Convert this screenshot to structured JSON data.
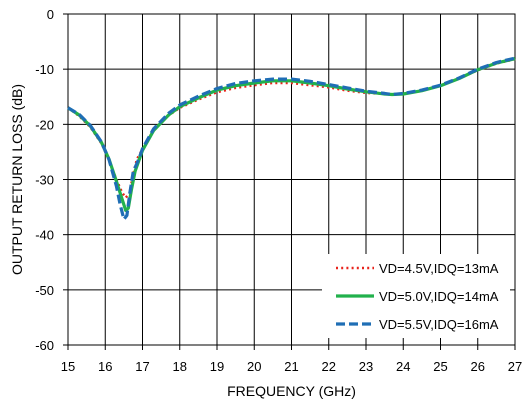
{
  "chart_data": {
    "type": "line",
    "title": "",
    "xlabel": "FREQUENCY (GHz)",
    "ylabel": "OUTPUT RETURN LOSS (dB)",
    "xlim": [
      15,
      27
    ],
    "ylim": [
      -60,
      0
    ],
    "xticks": [
      15,
      16,
      17,
      18,
      19,
      20,
      21,
      22,
      23,
      24,
      25,
      26,
      27
    ],
    "yticks": [
      0,
      -10,
      -20,
      -30,
      -40,
      -50,
      -60
    ],
    "grid": true,
    "legend_position": "bottom-right",
    "series": [
      {
        "name": "VD=4.5V,IDQ=13mA",
        "color": "#e8231b",
        "style": "dotted",
        "x": [
          15,
          15.3,
          15.6,
          15.9,
          16.1,
          16.3,
          16.45,
          16.55,
          16.65,
          16.75,
          16.85,
          17,
          17.3,
          17.7,
          18,
          18.5,
          19,
          19.5,
          20,
          20.5,
          21,
          21.5,
          22,
          22.5,
          23,
          23.5,
          23.7,
          24,
          24.5,
          25,
          25.5,
          26,
          26.5,
          27
        ],
        "y": [
          -17,
          -18.5,
          -20.5,
          -23.5,
          -26.5,
          -30,
          -32.3,
          -33.3,
          -32.5,
          -29,
          -26.3,
          -24.5,
          -21,
          -18.4,
          -17,
          -15.5,
          -14.2,
          -13.4,
          -12.9,
          -12.5,
          -12.5,
          -12.9,
          -13.3,
          -13.9,
          -14.3,
          -14.5,
          -14.6,
          -14.5,
          -13.9,
          -13,
          -11.7,
          -10.2,
          -9,
          -8.2
        ]
      },
      {
        "name": "VD=5.0V,IDQ=14mA",
        "color": "#22b14c",
        "style": "solid",
        "x": [
          15,
          15.3,
          15.6,
          15.9,
          16.1,
          16.3,
          16.45,
          16.55,
          16.62,
          16.7,
          16.8,
          17,
          17.3,
          17.7,
          18,
          18.5,
          19,
          19.5,
          20,
          20.5,
          21,
          21.5,
          22,
          22.5,
          23,
          23.5,
          23.7,
          24,
          24.5,
          25,
          25.5,
          26,
          26.5,
          27
        ],
        "y": [
          -17,
          -18.3,
          -20.3,
          -23.3,
          -26.3,
          -30.3,
          -33.5,
          -35.6,
          -35.2,
          -32,
          -28.5,
          -24.7,
          -21.1,
          -18.3,
          -16.8,
          -15.2,
          -13.8,
          -13,
          -12.5,
          -12.1,
          -12.1,
          -12.5,
          -13,
          -13.6,
          -14.1,
          -14.5,
          -14.6,
          -14.5,
          -13.9,
          -13,
          -11.7,
          -10.1,
          -8.9,
          -8.1
        ]
      },
      {
        "name": "VD=5.5V,IDQ=16mA",
        "color": "#1f6eb5",
        "style": "dashed",
        "x": [
          15,
          15.3,
          15.6,
          15.9,
          16.1,
          16.3,
          16.4,
          16.5,
          16.58,
          16.66,
          16.75,
          16.9,
          17,
          17.3,
          17.7,
          18,
          18.5,
          19,
          19.5,
          20,
          20.5,
          21,
          21.5,
          22,
          22.5,
          23,
          23.5,
          23.7,
          24,
          24.5,
          25,
          25.5,
          26,
          26.5,
          27
        ],
        "y": [
          -17,
          -18.2,
          -20.2,
          -23.2,
          -26.4,
          -31.2,
          -34.5,
          -37.2,
          -36.5,
          -32.5,
          -28.6,
          -26.3,
          -24.4,
          -20.8,
          -18,
          -16.5,
          -14.9,
          -13.5,
          -12.6,
          -12.1,
          -11.8,
          -11.8,
          -12.2,
          -12.8,
          -13.4,
          -14,
          -14.4,
          -14.6,
          -14.4,
          -13.8,
          -12.9,
          -11.6,
          -10,
          -8.8,
          -8
        ]
      }
    ]
  }
}
